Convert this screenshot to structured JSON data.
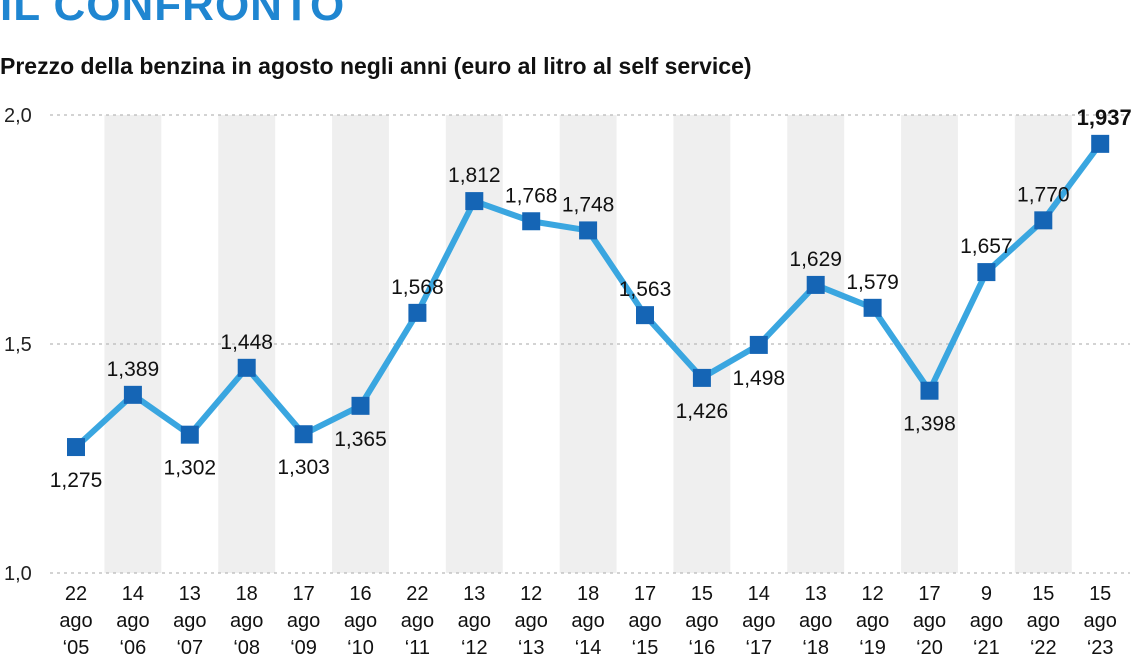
{
  "headline": "IL CONFRONTO",
  "subtitle": "Prezzo della benzina in agosto negli anni (euro al litro al self service)",
  "colors": {
    "line": "#3aa6e0",
    "marker": "#1565b5",
    "band": "#efefef",
    "headline": "#1f86d1"
  },
  "chart_data": {
    "type": "line",
    "ylim": [
      1.0,
      2.0
    ],
    "yticks": [
      {
        "value": 1.0,
        "label": "1,0"
      },
      {
        "value": 1.5,
        "label": "1,5"
      },
      {
        "value": 2.0,
        "label": "2,0"
      }
    ],
    "grid": "dashed horizontal",
    "categories": [
      {
        "day": "22",
        "month": "ago",
        "year": "‘05"
      },
      {
        "day": "14",
        "month": "ago",
        "year": "‘06"
      },
      {
        "day": "13",
        "month": "ago",
        "year": "‘07"
      },
      {
        "day": "18",
        "month": "ago",
        "year": "‘08"
      },
      {
        "day": "17",
        "month": "ago",
        "year": "‘09"
      },
      {
        "day": "16",
        "month": "ago",
        "year": "‘10"
      },
      {
        "day": "22",
        "month": "ago",
        "year": "‘11"
      },
      {
        "day": "13",
        "month": "ago",
        "year": "‘12"
      },
      {
        "day": "12",
        "month": "ago",
        "year": "‘13"
      },
      {
        "day": "18",
        "month": "ago",
        "year": "‘14"
      },
      {
        "day": "17",
        "month": "ago",
        "year": "‘15"
      },
      {
        "day": "15",
        "month": "ago",
        "year": "‘16"
      },
      {
        "day": "14",
        "month": "ago",
        "year": "‘17"
      },
      {
        "day": "13",
        "month": "ago",
        "year": "‘18"
      },
      {
        "day": "12",
        "month": "ago",
        "year": "‘19"
      },
      {
        "day": "17",
        "month": "ago",
        "year": "‘20"
      },
      {
        "day": "9",
        "month": "ago",
        "year": "‘21"
      },
      {
        "day": "15",
        "month": "ago",
        "year": "‘22"
      },
      {
        "day": "15",
        "month": "ago",
        "year": "‘23"
      }
    ],
    "values": [
      1.275,
      1.389,
      1.302,
      1.448,
      1.303,
      1.365,
      1.568,
      1.812,
      1.768,
      1.748,
      1.563,
      1.426,
      1.498,
      1.629,
      1.579,
      1.398,
      1.657,
      1.77,
      1.937
    ],
    "value_labels": [
      "1,275",
      "1,389",
      "1,302",
      "1,448",
      "1,303",
      "1,365",
      "1,568",
      "1,812",
      "1,768",
      "1,748",
      "1,563",
      "1,426",
      "1,498",
      "1,629",
      "1,579",
      "1,398",
      "1,657",
      "1,770",
      "1,937"
    ],
    "label_positions": [
      "below",
      "above",
      "below",
      "above",
      "below",
      "below",
      "above",
      "above",
      "above",
      "above",
      "above",
      "below",
      "below",
      "above",
      "above",
      "below",
      "above",
      "above",
      "above"
    ],
    "highlight_last": true
  }
}
